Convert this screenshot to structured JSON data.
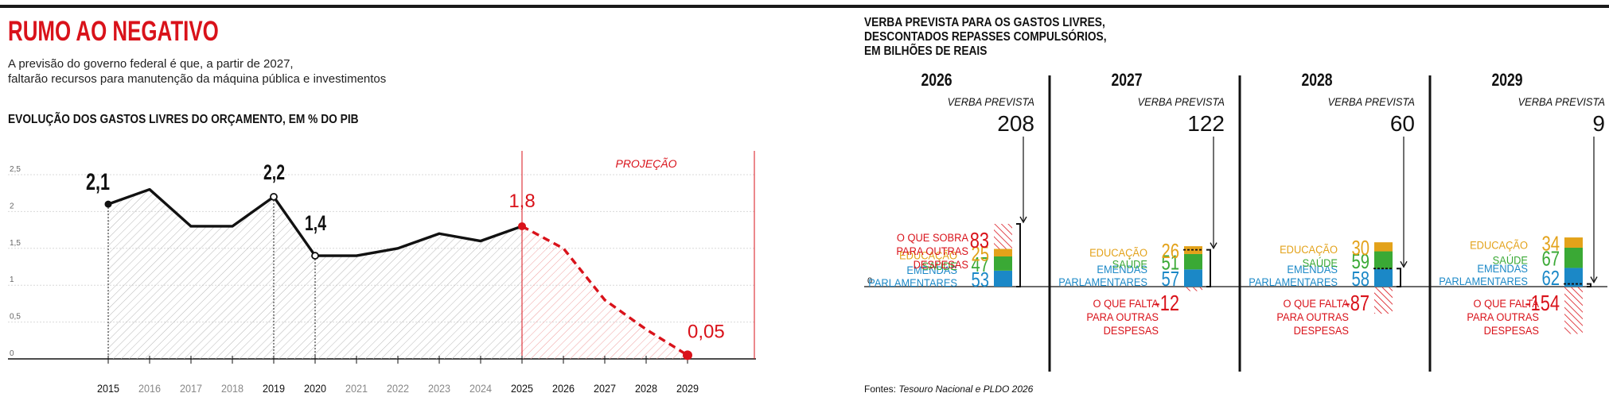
{
  "header": {
    "title": "RUMO AO NEGATIVO",
    "subtitle_line1": "A previsão do governo federal é que, a partir de 2027,",
    "subtitle_line2": "faltarão recursos para manutenção da máquina pública e investimentos",
    "left_section_title": "EVOLUÇÃO DOS GASTOS LIVRES DO ORÇAMENTO, EM % DO PIB",
    "right_section_title": [
      "VERBA PREVISTA PARA OS GASTOS LIVRES,",
      "DESCONTADOS REPASSES COMPULSÓRIOS,",
      "EM BILHÕES DE REAIS"
    ],
    "source_label": "Fontes: ",
    "source_text": "Tesouro Nacional e PLDO 2026"
  },
  "colors": {
    "accent_red": "#d9121a",
    "educacao": "#e3a21a",
    "saude": "#3aa935",
    "emendas": "#1b88c7",
    "line": "#111111"
  },
  "chart_data": [
    {
      "type": "line",
      "title": "EVOLUÇÃO DOS GASTOS LIVRES DO ORÇAMENTO, EM % DO PIB",
      "x": [
        2015,
        2016,
        2017,
        2018,
        2019,
        2020,
        2021,
        2022,
        2023,
        2024,
        2025,
        2026,
        2027,
        2028,
        2029
      ],
      "series": [
        {
          "values": [
            2.1,
            2.3,
            1.8,
            1.8,
            2.2,
            1.4,
            1.4,
            1.5,
            1.7,
            1.6,
            1.8,
            1.5,
            0.8,
            0.4,
            0.05
          ]
        }
      ],
      "projection_start": 2025,
      "projection_label": "PROJEÇÃO",
      "labeled_points": [
        {
          "x": 2015,
          "label": "2,1"
        },
        {
          "x": 2019,
          "label": "2,2"
        },
        {
          "x": 2020,
          "label": "1,4"
        },
        {
          "x": 2025,
          "label": "1,8"
        },
        {
          "x": 2029,
          "label": "0,05"
        }
      ],
      "yticks": [
        "0",
        "0,5",
        "1",
        "1,5",
        "2",
        "2,5"
      ],
      "ylim": [
        0,
        2.5
      ],
      "grid": true
    },
    {
      "type": "bar",
      "title": "VERBA PREVISTA PARA OS GASTOS LIVRES, DESCONTADOS REPASSES COMPULSÓRIOS, EM BILHÕES DE REAIS",
      "categories": [
        "2026",
        "2027",
        "2028",
        "2029"
      ],
      "verba_prevista": [
        208,
        122,
        60,
        9
      ],
      "series": [
        {
          "name": "EMENDAS PARLAMENTARES",
          "values": [
            53,
            57,
            58,
            62
          ]
        },
        {
          "name": "SAÚDE",
          "values": [
            47,
            51,
            59,
            67
          ]
        },
        {
          "name": "EDUCAÇÃO",
          "values": [
            25,
            26,
            30,
            34
          ]
        }
      ],
      "sobra_falta": [
        83,
        -12,
        -87,
        -154
      ],
      "verba_label": "VERBA PREVISTA",
      "sobra_label": [
        "O QUE SOBRA",
        "PARA OUTRAS",
        "DESPESAS"
      ],
      "falta_label": [
        "O QUE FALTA",
        "PARA OUTRAS",
        "DESPESAS"
      ],
      "zero_label": "0"
    }
  ]
}
